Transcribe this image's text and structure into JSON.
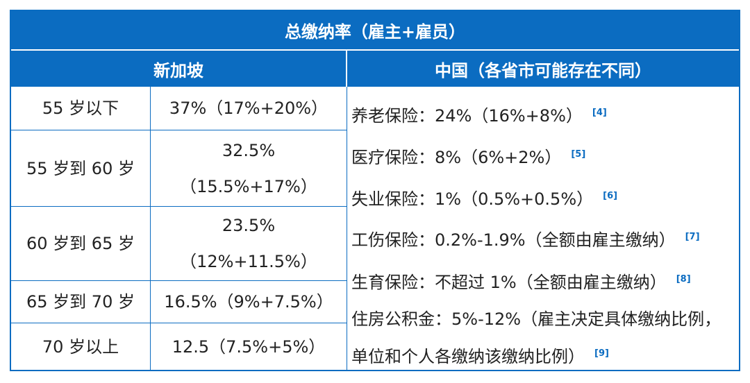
{
  "table": {
    "title": "总缴纳率（雇主+雇员）",
    "singapore_header": "新加坡",
    "china_header": "中国（各省市可能存在不同）",
    "singapore_rows": [
      {
        "age": "55 岁以下",
        "rate_line1": "37%（17%+20%）",
        "rate_line2": ""
      },
      {
        "age": "55 岁到 60 岁",
        "rate_line1": "32.5%",
        "rate_line2": "（15.5%+17%）"
      },
      {
        "age": "60 岁到 65 岁",
        "rate_line1": "23.5%",
        "rate_line2": "（12%+11.5%）"
      },
      {
        "age": "65 岁到 70 岁",
        "rate_line1": "16.5%（9%+7.5%）",
        "rate_line2": ""
      },
      {
        "age": "70 岁以上",
        "rate_line1": "12.5（7.5%+5%）",
        "rate_line2": ""
      }
    ],
    "china_items": [
      {
        "text": "养老保险：24%（16%+8%）",
        "ref": "[4]"
      },
      {
        "text": "医疗保险：8%（6%+2%）",
        "ref": "[5]"
      },
      {
        "text": "失业保险：1%（0.5%+0.5%）",
        "ref": "[6]"
      },
      {
        "text": "工伤保险：0.2%-1.9%（全额由雇主缴纳）",
        "ref": "[7]"
      },
      {
        "text": "生育保险：不超过 1%（全额由雇主缴纳）",
        "ref": "[8]"
      },
      {
        "text": "住房公积金：5%-12%（雇主决定具体缴纳比例，单位和个人各缴纳该缴纳比例）",
        "ref": "[9]"
      }
    ]
  },
  "colors": {
    "header_bg": "#0b6cc1",
    "header_text": "#ffffff",
    "body_text": "#222222",
    "ref_text": "#0b6cc1"
  }
}
